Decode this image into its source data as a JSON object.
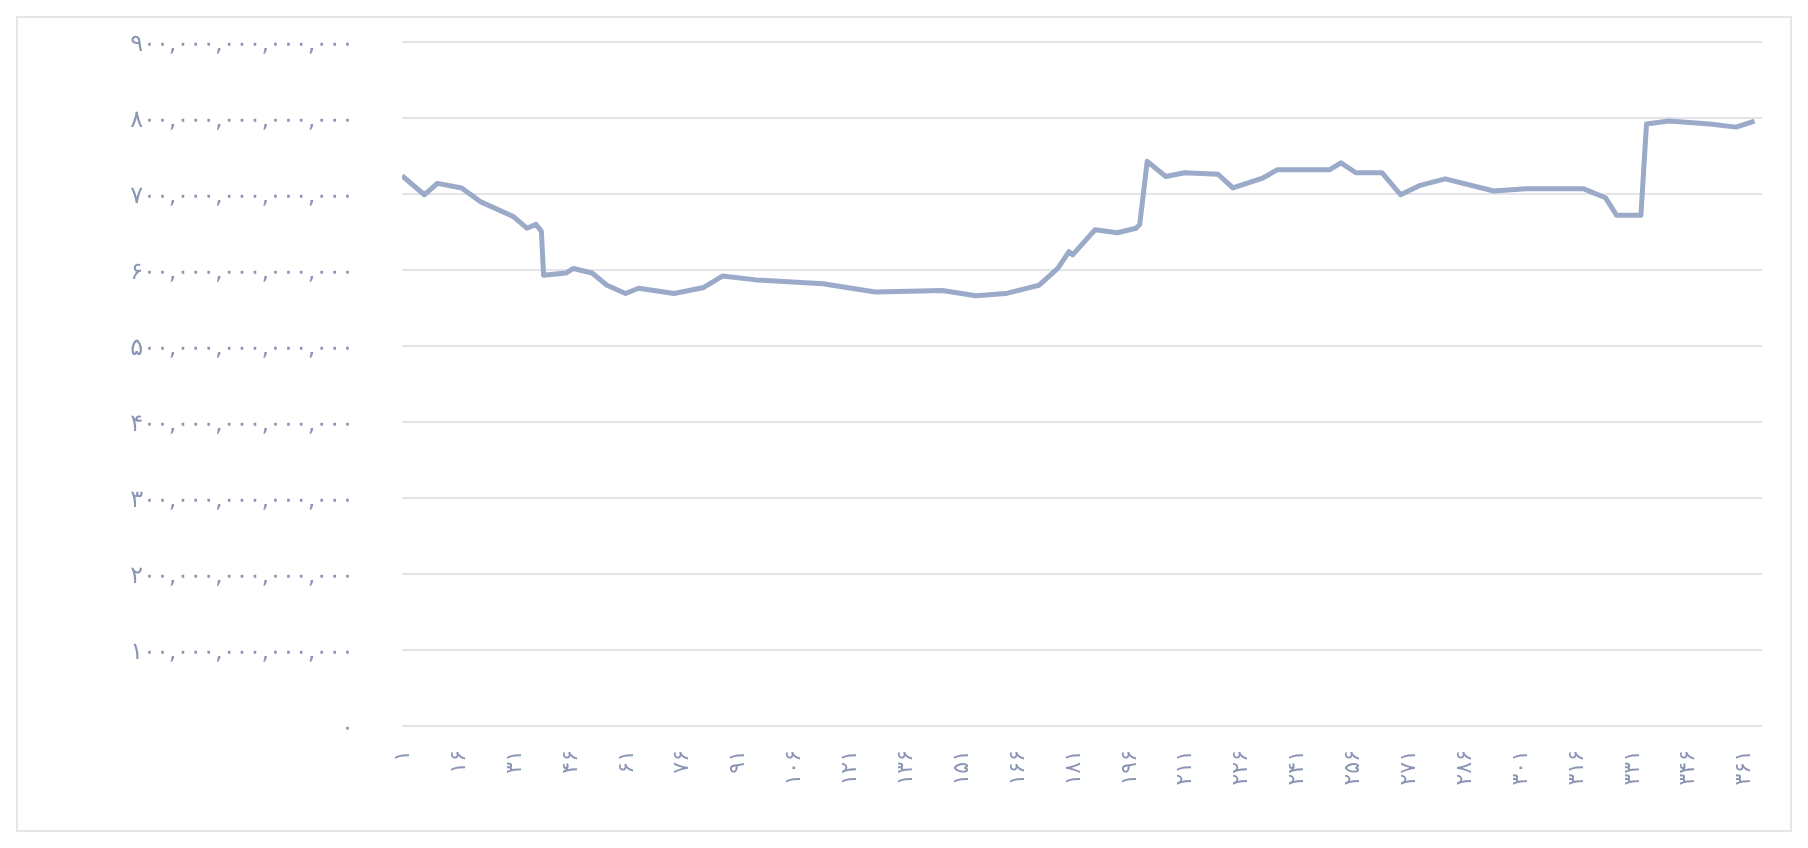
{
  "chart_data": {
    "type": "line",
    "color": "#9aaac8",
    "x": [
      1,
      7,
      10.5,
      17,
      22,
      31,
      34.5,
      37,
      38.4,
      39,
      45,
      47,
      52,
      56,
      61,
      64.5,
      74,
      82,
      87,
      96,
      114,
      128,
      146,
      155,
      163,
      172,
      177,
      180,
      181,
      187,
      193,
      198,
      199,
      201,
      206,
      211,
      220,
      224,
      232,
      236,
      250,
      253,
      257,
      264,
      269,
      274,
      281,
      294,
      303,
      318,
      324,
      327,
      333.5,
      335,
      341,
      352,
      359,
      364
    ],
    "values": [
      724000000000000,
      699000000000000,
      714000000000000,
      708000000000000,
      690000000000000,
      670000000000000,
      655000000000000,
      660000000000000,
      651000000000000,
      593000000000000,
      596000000000000,
      602000000000000,
      596000000000000,
      580000000000000,
      569000000000000,
      576000000000000,
      569000000000000,
      577000000000000,
      592000000000000,
      587000000000000,
      582000000000000,
      571000000000000,
      573000000000000,
      566000000000000,
      569000000000000,
      580000000000000,
      602000000000000,
      624000000000000,
      620000000000000,
      653000000000000,
      649000000000000,
      655000000000000,
      660000000000000,
      743000000000000,
      723000000000000,
      728000000000000,
      726000000000000,
      708000000000000,
      721000000000000,
      732000000000000,
      732000000000000,
      741000000000000,
      728000000000000,
      728000000000000,
      699000000000000,
      711000000000000,
      720000000000000,
      704000000000000,
      707000000000000,
      707000000000000,
      695000000000000,
      672000000000000,
      672000000000000,
      792000000000000,
      796000000000000,
      792000000000000,
      788000000000000,
      796000000000000
    ],
    "xlim": [
      1,
      366
    ],
    "xticks": [
      {
        "value": 1,
        "label": "۱"
      },
      {
        "value": 16,
        "label": "۱۶"
      },
      {
        "value": 31,
        "label": "۳۱"
      },
      {
        "value": 46,
        "label": "۴۶"
      },
      {
        "value": 61,
        "label": "۶۱"
      },
      {
        "value": 76,
        "label": "۷۶"
      },
      {
        "value": 91,
        "label": "۹۱"
      },
      {
        "value": 106,
        "label": "۱۰۶"
      },
      {
        "value": 121,
        "label": "۱۲۱"
      },
      {
        "value": 136,
        "label": "۱۳۶"
      },
      {
        "value": 151,
        "label": "۱۵۱"
      },
      {
        "value": 166,
        "label": "۱۶۶"
      },
      {
        "value": 181,
        "label": "۱۸۱"
      },
      {
        "value": 196,
        "label": "۱۹۶"
      },
      {
        "value": 211,
        "label": "۲۱۱"
      },
      {
        "value": 226,
        "label": "۲۲۶"
      },
      {
        "value": 241,
        "label": "۲۴۱"
      },
      {
        "value": 256,
        "label": "۲۵۶"
      },
      {
        "value": 271,
        "label": "۲۷۱"
      },
      {
        "value": 286,
        "label": "۲۸۶"
      },
      {
        "value": 301,
        "label": "۳۰۱"
      },
      {
        "value": 316,
        "label": "۳۱۶"
      },
      {
        "value": 331,
        "label": "۳۳۱"
      },
      {
        "value": 346,
        "label": "۳۴۶"
      },
      {
        "value": 361,
        "label": "۳۶۱"
      }
    ],
    "ylim": [
      0,
      900000000000000
    ],
    "yticks": [
      {
        "value": 0,
        "label": "۰"
      },
      {
        "value": 100000000000000,
        "label": "۱۰۰,۰۰۰,۰۰۰,۰۰۰,۰۰۰"
      },
      {
        "value": 200000000000000,
        "label": "۲۰۰,۰۰۰,۰۰۰,۰۰۰,۰۰۰"
      },
      {
        "value": 300000000000000,
        "label": "۳۰۰,۰۰۰,۰۰۰,۰۰۰,۰۰۰"
      },
      {
        "value": 400000000000000,
        "label": "۴۰۰,۰۰۰,۰۰۰,۰۰۰,۰۰۰"
      },
      {
        "value": 500000000000000,
        "label": "۵۰۰,۰۰۰,۰۰۰,۰۰۰,۰۰۰"
      },
      {
        "value": 600000000000000,
        "label": "۶۰۰,۰۰۰,۰۰۰,۰۰۰,۰۰۰"
      },
      {
        "value": 700000000000000,
        "label": "۷۰۰,۰۰۰,۰۰۰,۰۰۰,۰۰۰"
      },
      {
        "value": 800000000000000,
        "label": "۸۰۰,۰۰۰,۰۰۰,۰۰۰,۰۰۰"
      },
      {
        "value": 900000000000000,
        "label": "۹۰۰,۰۰۰,۰۰۰,۰۰۰,۰۰۰"
      }
    ],
    "grid": "y",
    "marker": "none",
    "line_style": "solid",
    "legend": false
  }
}
